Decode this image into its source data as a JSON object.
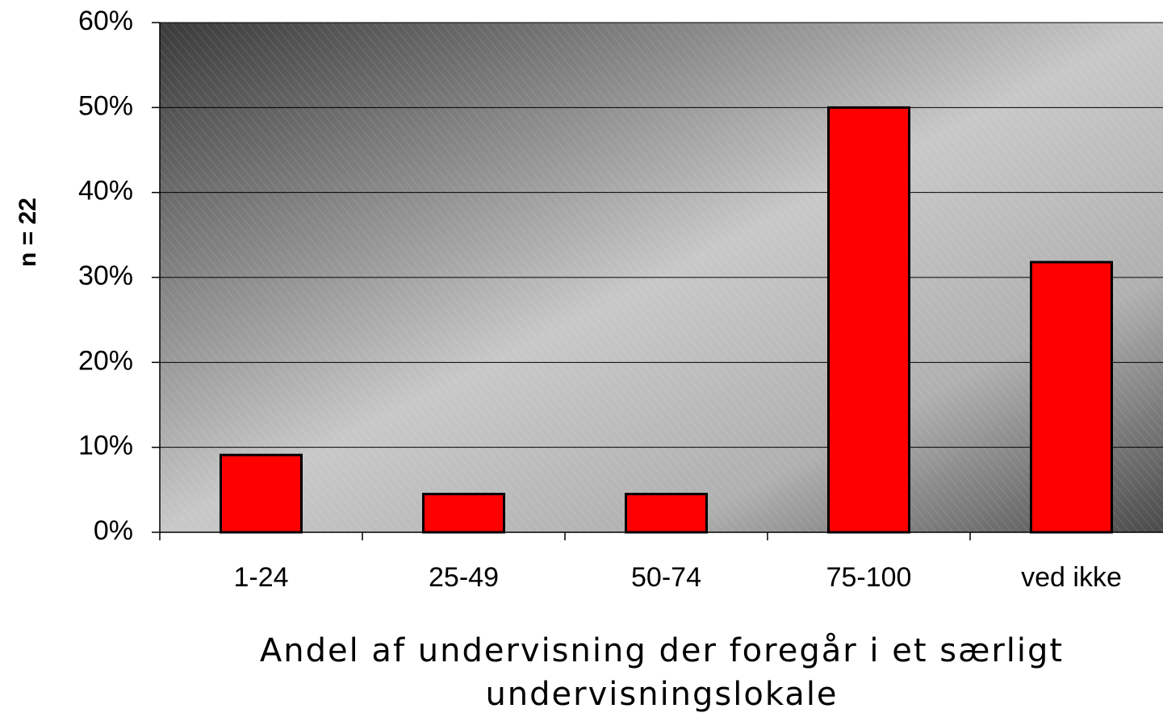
{
  "chart_data": {
    "type": "bar",
    "y_label": "n = 22",
    "x_label": "Andel af undervisning der foregår i et særligt undervisningslokale",
    "categories": [
      "1-24",
      "25-49",
      "50-74",
      "75-100",
      "ved ikke"
    ],
    "values": [
      9.1,
      4.5,
      4.5,
      50,
      31.8
    ],
    "color": "#ff0000",
    "ylim": [
      0,
      60
    ],
    "yticks": [
      {
        "value": 0,
        "label": "0%"
      },
      {
        "value": 10,
        "label": "10%"
      },
      {
        "value": 20,
        "label": "20%"
      },
      {
        "value": 30,
        "label": "30%"
      },
      {
        "value": 40,
        "label": "40%"
      },
      {
        "value": 50,
        "label": "50%"
      },
      {
        "value": 60,
        "label": "60%"
      }
    ],
    "grid": true
  }
}
